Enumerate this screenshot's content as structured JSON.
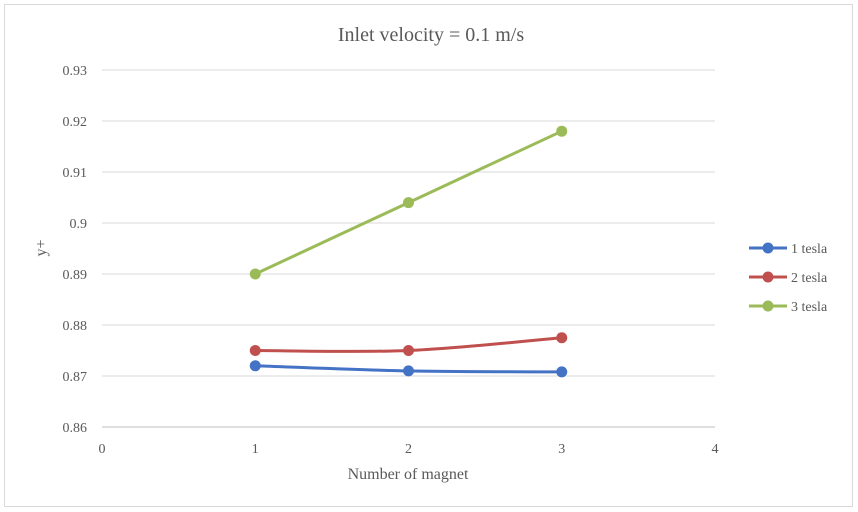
{
  "chart_data": {
    "type": "line",
    "title": "Inlet velocity = 0.1 m/s",
    "xlabel": "Number of magnet",
    "ylabel": "y+",
    "xlim": [
      0,
      4
    ],
    "ylim": [
      0.86,
      0.93
    ],
    "x_ticks": [
      "0",
      "1",
      "2",
      "3",
      "4"
    ],
    "y_ticks": [
      "0.86",
      "0.87",
      "0.88",
      "0.89",
      "0.9",
      "0.91",
      "0.92",
      "0.93"
    ],
    "grid": true,
    "smooth": true,
    "legend_position": "right",
    "x": [
      1,
      2,
      3
    ],
    "series": [
      {
        "name": "1 tesla",
        "color": "#4472c4",
        "values": [
          0.872,
          0.871,
          0.8708
        ]
      },
      {
        "name": "2 tesla",
        "color": "#c0504d",
        "values": [
          0.875,
          0.875,
          0.8775
        ]
      },
      {
        "name": "3 tesla",
        "color": "#9bbb59",
        "values": [
          0.89,
          0.904,
          0.918
        ]
      }
    ]
  }
}
